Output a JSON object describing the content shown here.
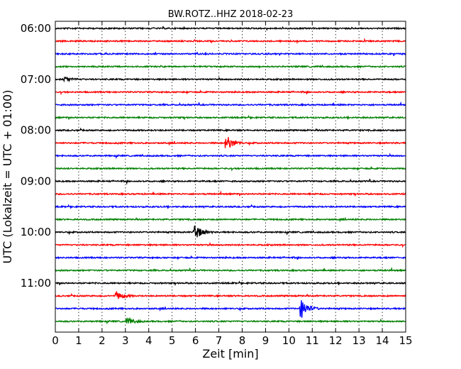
{
  "chart_data": {
    "type": "line",
    "title": "BW.ROTZ..HHZ 2018-02-23",
    "xlabel": "Zeit  [min]",
    "ylabel": "UTC (Lokalzeit = UTC + 01:00)",
    "xlim": [
      0,
      15
    ],
    "x_ticks": [
      "0",
      "1",
      "2",
      "3",
      "4",
      "5",
      "6",
      "7",
      "8",
      "9",
      "10",
      "11",
      "12",
      "13",
      "14",
      "15"
    ],
    "y_ticks": [
      "06:00",
      "07:00",
      "08:00",
      "09:00",
      "10:00",
      "11:00"
    ],
    "grid": true,
    "trace_interval_min": 15,
    "start_time": "06:00",
    "trace_count": 24,
    "colors": [
      "#000000",
      "#ff0000",
      "#0000ff",
      "#008000"
    ],
    "events": [
      {
        "trace": 4,
        "x": 0.4,
        "amp": 0.25
      },
      {
        "trace": 9,
        "x": 7.3,
        "amp": 0.9
      },
      {
        "trace": 16,
        "x": 5.95,
        "amp": 0.9
      },
      {
        "trace": 21,
        "x": 2.6,
        "amp": 0.45
      },
      {
        "trace": 22,
        "x": 10.5,
        "amp": 1.1
      },
      {
        "trace": 23,
        "x": 3.05,
        "amp": 0.4
      }
    ]
  }
}
